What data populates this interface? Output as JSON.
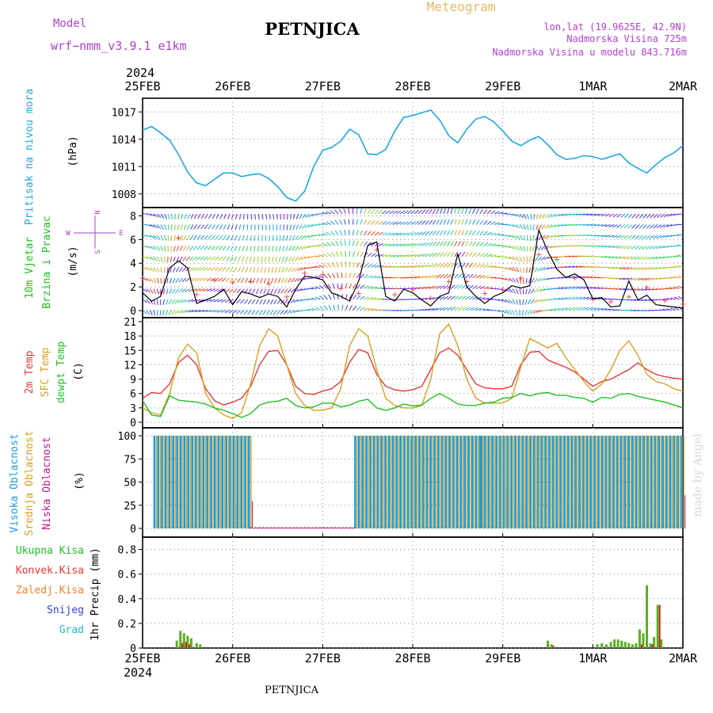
{
  "header": {
    "model_label": "Model",
    "model_name": "wrf−nmm_v3.9.1  e1km",
    "station": "PETNJICA",
    "product": "Meteogram",
    "coords": "lon,lat (19.9625E, 42.9N)",
    "elevation": "Nadmorska Visina 725m",
    "model_elevation": "Nadmorska Visina u modelu 843.716m"
  },
  "footer": {
    "station": "PETNJICA",
    "credit": "made by Angel"
  },
  "colors": {
    "pressure": "#1fa8e0",
    "temp2m": "#e83838",
    "sfc": "#d8a020",
    "dew": "#20c020",
    "high_cloud": "#1a9ee0",
    "mid_cloud": "#e0a020",
    "low_cloud": "#c01890",
    "total_rain": "#58b020",
    "conv_rain": "#e02020",
    "purple_text": "#b040d0",
    "grid": "#888888"
  },
  "x_axis": {
    "top_year": "2024",
    "bottom_year": "2024",
    "ticks": [
      "25FEB",
      "26FEB",
      "27FEB",
      "28FEB",
      "29FEB",
      "1MAR",
      "2MAR"
    ]
  },
  "chart_data": [
    {
      "type": "line",
      "ylabel_outer": "Pritisak na nivou mora",
      "ylabel_unit": "(hPa)",
      "yticks": [
        "1008",
        "1011",
        "1014",
        "1017"
      ],
      "ylim": [
        1006.5,
        1018.5
      ],
      "grid": true,
      "series": [
        {
          "x": [
            0,
            0.1,
            0.2,
            0.3,
            0.4,
            0.5,
            0.6,
            0.7,
            0.8,
            0.9,
            1,
            1.1,
            1.2,
            1.3,
            1.4,
            1.5,
            1.6,
            1.7,
            1.8,
            1.9,
            2,
            2.1,
            2.2,
            2.3,
            2.4,
            2.5,
            2.6,
            2.7,
            2.8,
            2.9,
            3,
            3.1,
            3.2,
            3.3,
            3.4,
            3.5,
            3.6,
            3.7,
            3.8,
            3.9,
            4,
            4.1,
            4.2,
            4.3,
            4.4,
            4.5,
            4.6,
            4.7,
            4.8,
            4.9,
            5,
            5.1,
            5.2,
            5.3,
            5.4,
            5.5,
            5.6,
            5.7,
            5.8,
            5.9,
            6
          ],
          "values": [
            1015,
            1015.4,
            1014.7,
            1013.9,
            1012.3,
            1010.4,
            1009.2,
            1008.9,
            1009.6,
            1010.3,
            1010.3,
            1009.9,
            1010.1,
            1010.2,
            1009.7,
            1008.8,
            1007.6,
            1007.2,
            1008.3,
            1011,
            1012.8,
            1013.1,
            1013.8,
            1015.1,
            1014.5,
            1012.4,
            1012.3,
            1012.9,
            1014.9,
            1016.4,
            1016.6,
            1016.9,
            1017.2,
            1016.1,
            1014.4,
            1013.6,
            1015.1,
            1016.2,
            1016.5,
            1015.9,
            1014.9,
            1013.8,
            1013.3,
            1013.9,
            1014.3,
            1013.4,
            1012.3,
            1011.8,
            1011.9,
            1012.2,
            1012.1,
            1011.8,
            1012.1,
            1012.4,
            1011.4,
            1010.8,
            1010.3,
            1011.2,
            1012,
            1012.5,
            1013.3
          ]
        }
      ]
    },
    {
      "type": "line",
      "ylabel_outer": [
        "10m Vjetar",
        "Brzina i Pravac"
      ],
      "ylabel_unit": "(m/s)",
      "direction_key": {
        "n": "N",
        "s": "S",
        "w": "W",
        "e": "E"
      },
      "yticks": [
        "0",
        "2",
        "4",
        "6",
        "8"
      ],
      "ylim": [
        -0.6,
        8.7
      ],
      "grid": true,
      "series": [
        {
          "name": "speed",
          "x": [
            0,
            0.1,
            0.2,
            0.3,
            0.4,
            0.5,
            0.6,
            0.7,
            0.8,
            0.9,
            1,
            1.1,
            1.2,
            1.3,
            1.4,
            1.5,
            1.6,
            1.7,
            1.8,
            1.9,
            2,
            2.1,
            2.2,
            2.3,
            2.4,
            2.5,
            2.6,
            2.7,
            2.8,
            2.9,
            3,
            3.1,
            3.2,
            3.3,
            3.4,
            3.5,
            3.6,
            3.7,
            3.8,
            3.9,
            4,
            4.1,
            4.2,
            4.3,
            4.4,
            4.5,
            4.6,
            4.7,
            4.8,
            4.9,
            5,
            5.1,
            5.2,
            5.3,
            5.4,
            5.5,
            5.6,
            5.7,
            5.8,
            5.9,
            6
          ],
          "values": [
            1.5,
            0.8,
            1.2,
            3.6,
            4.2,
            3.6,
            0.6,
            0.9,
            1.2,
            1.8,
            0.5,
            1.6,
            1.4,
            1.1,
            1.4,
            1.2,
            0.3,
            1.8,
            2.9,
            2.8,
            2.6,
            1.5,
            1.2,
            0.8,
            2.5,
            5.5,
            5.8,
            1.2,
            0.8,
            1.8,
            1.5,
            0.9,
            0.4,
            1.2,
            1.5,
            4.8,
            2.0,
            1.2,
            0.6,
            1.2,
            1.5,
            2.1,
            1.9,
            2.1,
            6.8,
            5.0,
            3.5,
            2.8,
            3.1,
            2.6,
            1.0,
            1.1,
            0.3,
            0.4,
            2.5,
            0.9,
            1.3,
            0.5,
            0.4,
            0.3,
            0.2
          ]
        },
        {
          "name": "gust",
          "x": [
            0,
            0.2,
            0.4,
            0.6,
            0.8,
            1,
            1.2,
            1.4,
            1.6,
            1.8,
            2,
            2.2,
            2.4,
            2.6,
            2.8,
            3,
            3.2,
            3.4,
            3.6,
            3.8,
            4,
            4.2,
            4.4,
            4.6,
            4.8,
            5,
            5.2,
            5.4,
            5.6,
            5.8,
            6
          ],
          "values": [
            2.8,
            1.6,
            6.2,
            1.4,
            2.6,
            2.4,
            2.5,
            2.3,
            1.2,
            3.2,
            3.1,
            1.9,
            1.5,
            5.2,
            1.4,
            1.8,
            1.1,
            2.5,
            2.5,
            1.5,
            1.8,
            2.8,
            4.8,
            4.4,
            2.8,
            1.0,
            0.8,
            1.2,
            2.0,
            0.9,
            0.6
          ]
        }
      ]
    },
    {
      "type": "line",
      "ylabel_outer": [
        "2m Temp",
        "SFC Temp",
        "dewpt Temp"
      ],
      "ylabel_unit": "(C)",
      "yticks": [
        "0",
        "3",
        "6",
        "9",
        "12",
        "15",
        "18",
        "21"
      ],
      "ylim": [
        0,
        21
      ],
      "grid": true,
      "series": [
        {
          "name": "2m Temp",
          "x": [
            0,
            0.1,
            0.2,
            0.3,
            0.4,
            0.5,
            0.6,
            0.7,
            0.8,
            0.9,
            1,
            1.1,
            1.2,
            1.3,
            1.4,
            1.5,
            1.6,
            1.7,
            1.8,
            1.9,
            2,
            2.1,
            2.2,
            2.3,
            2.4,
            2.5,
            2.6,
            2.7,
            2.8,
            2.9,
            3,
            3.1,
            3.2,
            3.3,
            3.4,
            3.5,
            3.6,
            3.7,
            3.8,
            3.9,
            4,
            4.1,
            4.2,
            4.3,
            4.4,
            4.5,
            4.6,
            4.7,
            4.8,
            4.9,
            5,
            5.1,
            5.2,
            5.3,
            5.4,
            5.5,
            5.6,
            5.7,
            5.8,
            5.9,
            6
          ],
          "values": [
            5,
            6.2,
            6,
            8,
            12.5,
            14,
            12,
            7,
            4.5,
            3.6,
            4.2,
            5,
            7.5,
            12,
            14.8,
            15,
            12,
            7.5,
            6,
            5.8,
            6.5,
            7,
            8.5,
            12.5,
            15.2,
            14.5,
            10,
            7.5,
            6.8,
            6.5,
            6.8,
            7.5,
            11,
            14.5,
            15.5,
            14,
            11,
            8,
            7.2,
            7,
            7,
            7.5,
            12,
            14.6,
            14.8,
            13,
            12.2,
            11.5,
            10.5,
            9,
            7.5,
            8.5,
            9,
            10,
            11,
            12.4,
            11,
            10,
            9.5,
            9.2,
            9
          ]
        },
        {
          "name": "SFC Temp",
          "x": [
            0,
            0.1,
            0.2,
            0.3,
            0.4,
            0.5,
            0.6,
            0.7,
            0.8,
            0.9,
            1,
            1.1,
            1.2,
            1.3,
            1.4,
            1.5,
            1.6,
            1.7,
            1.8,
            1.9,
            2,
            2.1,
            2.2,
            2.3,
            2.4,
            2.5,
            2.6,
            2.7,
            2.8,
            2.9,
            3,
            3.1,
            3.2,
            3.3,
            3.4,
            3.5,
            3.6,
            3.7,
            3.8,
            3.9,
            4,
            4.1,
            4.2,
            4.3,
            4.4,
            4.5,
            4.6,
            4.7,
            4.8,
            4.9,
            5,
            5.1,
            5.2,
            5.3,
            5.4,
            5.5,
            5.6,
            5.7,
            5.8,
            5.9,
            6
          ],
          "values": [
            3,
            2,
            1.5,
            6,
            13.5,
            16.3,
            14.5,
            6,
            3,
            1.5,
            0.8,
            2,
            8,
            16,
            19.5,
            18,
            12,
            6,
            3.5,
            2.5,
            2.5,
            3,
            7,
            16,
            19.5,
            18,
            11,
            5,
            3.5,
            3,
            3,
            3.5,
            9,
            18.5,
            20.5,
            16,
            9,
            5,
            4,
            4,
            4,
            5,
            11.5,
            17.5,
            16.5,
            15.5,
            16.5,
            13.5,
            11,
            8.5,
            6.5,
            8,
            11,
            15,
            17,
            14,
            10,
            8.5,
            8,
            7,
            6.5
          ]
        },
        {
          "name": "dewpt Temp",
          "x": [
            0,
            0.1,
            0.2,
            0.3,
            0.4,
            0.5,
            0.6,
            0.7,
            0.8,
            0.9,
            1,
            1.1,
            1.2,
            1.3,
            1.4,
            1.5,
            1.6,
            1.7,
            1.8,
            1.9,
            2,
            2.1,
            2.2,
            2.3,
            2.4,
            2.5,
            2.6,
            2.7,
            2.8,
            2.9,
            3,
            3.1,
            3.2,
            3.3,
            3.4,
            3.5,
            3.6,
            3.7,
            3.8,
            3.9,
            4,
            4.1,
            4.2,
            4.3,
            4.4,
            4.5,
            4.6,
            4.7,
            4.8,
            4.9,
            5,
            5.1,
            5.2,
            5.3,
            5.4,
            5.5,
            5.6,
            5.7,
            5.8,
            5.9,
            6
          ],
          "values": [
            4.5,
            1.5,
            1.2,
            5.5,
            4.6,
            4.4,
            4.2,
            3.8,
            3,
            2.5,
            1.8,
            1,
            1.8,
            3.6,
            4.2,
            4.4,
            5,
            3.5,
            3,
            3.2,
            4,
            4,
            3.2,
            3.6,
            4.4,
            4.8,
            3,
            2.5,
            3,
            3.8,
            3.4,
            3.6,
            5,
            6,
            5,
            3.8,
            3.5,
            3.5,
            4,
            4.2,
            5,
            5.2,
            6,
            5.5,
            6,
            6.2,
            5.6,
            5.6,
            5.2,
            5,
            4.2,
            5.2,
            5,
            5.8,
            6,
            5.4,
            5,
            4.6,
            4.2,
            3.6,
            3
          ]
        }
      ]
    },
    {
      "type": "bar",
      "ylabel_outer": [
        "Visoka Oblacnost",
        "Srednja Oblacnost",
        "Niska Oblacnost"
      ],
      "ylabel_unit": "(%)",
      "yticks": [
        "0",
        "25",
        "50",
        "75",
        "100"
      ],
      "ylim": [
        0,
        100
      ],
      "grid": true,
      "cloud_cover_segments": [
        {
          "from": 0.12,
          "to": 1.18,
          "high": 100,
          "mid": 100,
          "low": 30
        },
        {
          "from": 1.18,
          "to": 2.35,
          "high": 0,
          "mid": 2,
          "low": 0
        },
        {
          "from": 2.35,
          "to": 3.75,
          "high": 100,
          "mid": 100,
          "low": 5
        },
        {
          "from": 3.75,
          "to": 6.0,
          "high": 100,
          "mid": 100,
          "low": 45
        }
      ]
    },
    {
      "type": "bar",
      "ylabel_outer": [
        "Ukupna Kisa",
        "Konvek.Kisa",
        "Zaledj.Kisa",
        "Snijeg",
        "Grad"
      ],
      "ylabel_unit": "1hr Precip (mm)",
      "yticks": [
        "0",
        "0.2",
        "0.4",
        "0.6",
        "0.8"
      ],
      "ylim": [
        0,
        0.9
      ],
      "grid": true,
      "series": [
        {
          "name": "Ukupna Kisa",
          "x": [
            0.38,
            0.42,
            0.46,
            0.5,
            0.54,
            0.6,
            0.64,
            4.5,
            4.54,
            5.05,
            5.1,
            5.15,
            5.2,
            5.24,
            5.28,
            5.32,
            5.36,
            5.4,
            5.44,
            5.48,
            5.52,
            5.56,
            5.6,
            5.64,
            5.68,
            5.72,
            5.76
          ],
          "values": [
            0.06,
            0.14,
            0.12,
            0.1,
            0.08,
            0.04,
            0.03,
            0.06,
            0.03,
            0.03,
            0.04,
            0.03,
            0.05,
            0.07,
            0.07,
            0.06,
            0.05,
            0.04,
            0.03,
            0.04,
            0.15,
            0.12,
            0.51,
            0.04,
            0.09,
            0.35,
            0.07
          ]
        },
        {
          "name": "Konvek.Kisa",
          "x": [
            0.42,
            0.46,
            0.5,
            4.54,
            5.52,
            5.64,
            5.72
          ],
          "values": [
            0.04,
            0.05,
            0.03,
            0.02,
            0.03,
            0.03,
            0.35
          ]
        }
      ]
    }
  ]
}
